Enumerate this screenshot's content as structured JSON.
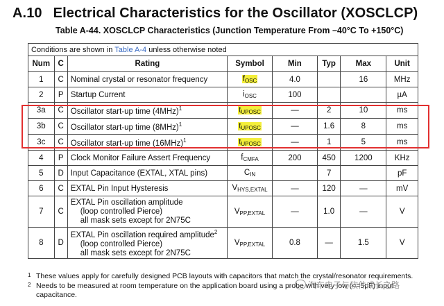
{
  "section": {
    "number": "A.10",
    "title": "Electrical Characteristics for the Oscillator (XOSCLCP)"
  },
  "table_title": "Table A-44. XOSCLCP Characteristics (Junction Temperature From –40°C To +150°C)",
  "conditions": {
    "prefix": "Conditions are shown in ",
    "link": "Table A-4",
    "suffix": " unless otherwise noted"
  },
  "headers": {
    "num": "Num",
    "c": "C",
    "rating": "Rating",
    "symbol": "Symbol",
    "min": "Min",
    "typ": "Typ",
    "max": "Max",
    "unit": "Unit"
  },
  "rows": [
    {
      "num": "1",
      "c": "C",
      "rating": "Nominal crystal or resonator frequency",
      "sym_main": "f",
      "sym_sub": "OSC",
      "min": "4.0",
      "typ": "",
      "max": "16",
      "unit": "MHz"
    },
    {
      "num": "2",
      "c": "P",
      "rating": "Startup Current",
      "sym_main": "i",
      "sym_sub": "OSC",
      "min": "100",
      "typ": "",
      "max": "",
      "unit": "µA"
    },
    {
      "num": "3a",
      "c": "C",
      "rating": "Oscillator start-up time (4MHz)",
      "note": "1",
      "sym_main": "t",
      "sym_sub": "UPOSC",
      "min": "—",
      "typ": "2",
      "max": "10",
      "unit": "ms"
    },
    {
      "num": "3b",
      "c": "C",
      "rating": "Oscillator start-up time (8MHz)",
      "note": "1",
      "sym_main": "t",
      "sym_sub": "UPOSC",
      "min": "—",
      "typ": "1.6",
      "max": "8",
      "unit": "ms"
    },
    {
      "num": "3c",
      "c": "C",
      "rating": "Oscillator start-up time (16MHz)",
      "note": "1",
      "sym_main": "t",
      "sym_sub": "UPOSC",
      "min": "—",
      "typ": "1",
      "max": "5",
      "unit": "ms"
    },
    {
      "num": "4",
      "c": "P",
      "rating": "Clock Monitor Failure Assert Frequency",
      "sym_main": "f",
      "sym_sub": "CMFA",
      "min": "200",
      "typ": "450",
      "max": "1200",
      "unit": "KHz"
    },
    {
      "num": "5",
      "c": "D",
      "rating": "Input Capacitance (EXTAL, XTAL pins)",
      "sym_main": "C",
      "sym_sub": "IN",
      "min": "",
      "typ": "7",
      "max": "",
      "unit": "pF"
    },
    {
      "num": "6",
      "c": "C",
      "rating": "EXTAL Pin Input Hysteresis",
      "sym_main": "V",
      "sym_sub": "HYS,EXTAL",
      "min": "—",
      "typ": "120",
      "max": "—",
      "unit": "mV"
    },
    {
      "num": "7",
      "c": "C",
      "rating_lines": [
        "EXTAL Pin oscillation amplitude",
        "(loop controlled Pierce)",
        "all mask sets except for 2N75C"
      ],
      "sym_main": "V",
      "sym_sub": "PP,EXTAL",
      "min": "—",
      "typ": "1.0",
      "max": "—",
      "unit": "V"
    },
    {
      "num": "8",
      "c": "D",
      "rating_lines": [
        "EXTAL Pin oscillation required amplitude",
        "(loop controlled Pierce)",
        "all mask sets except for 2N75C"
      ],
      "note": "2",
      "sym_main": "V",
      "sym_sub": "PP,EXTAL",
      "min": "0.8",
      "typ": "—",
      "max": "1.5",
      "unit": "V"
    }
  ],
  "footnotes": [
    {
      "mark": "1",
      "text": "These values apply for carefully designed PCB layouts with capacitors that match the crystal/resonator requirements."
    },
    {
      "mark": "2",
      "text": "Needs to be measured at room temperature on the application board using a probe with very low (<=5pF) input capacitance."
    }
  ],
  "watermark": "汽车电子与软件成长之路",
  "colors": {
    "highlight": "#f4ef3a",
    "redbox": "#e23030",
    "link": "#3b6cc4"
  }
}
